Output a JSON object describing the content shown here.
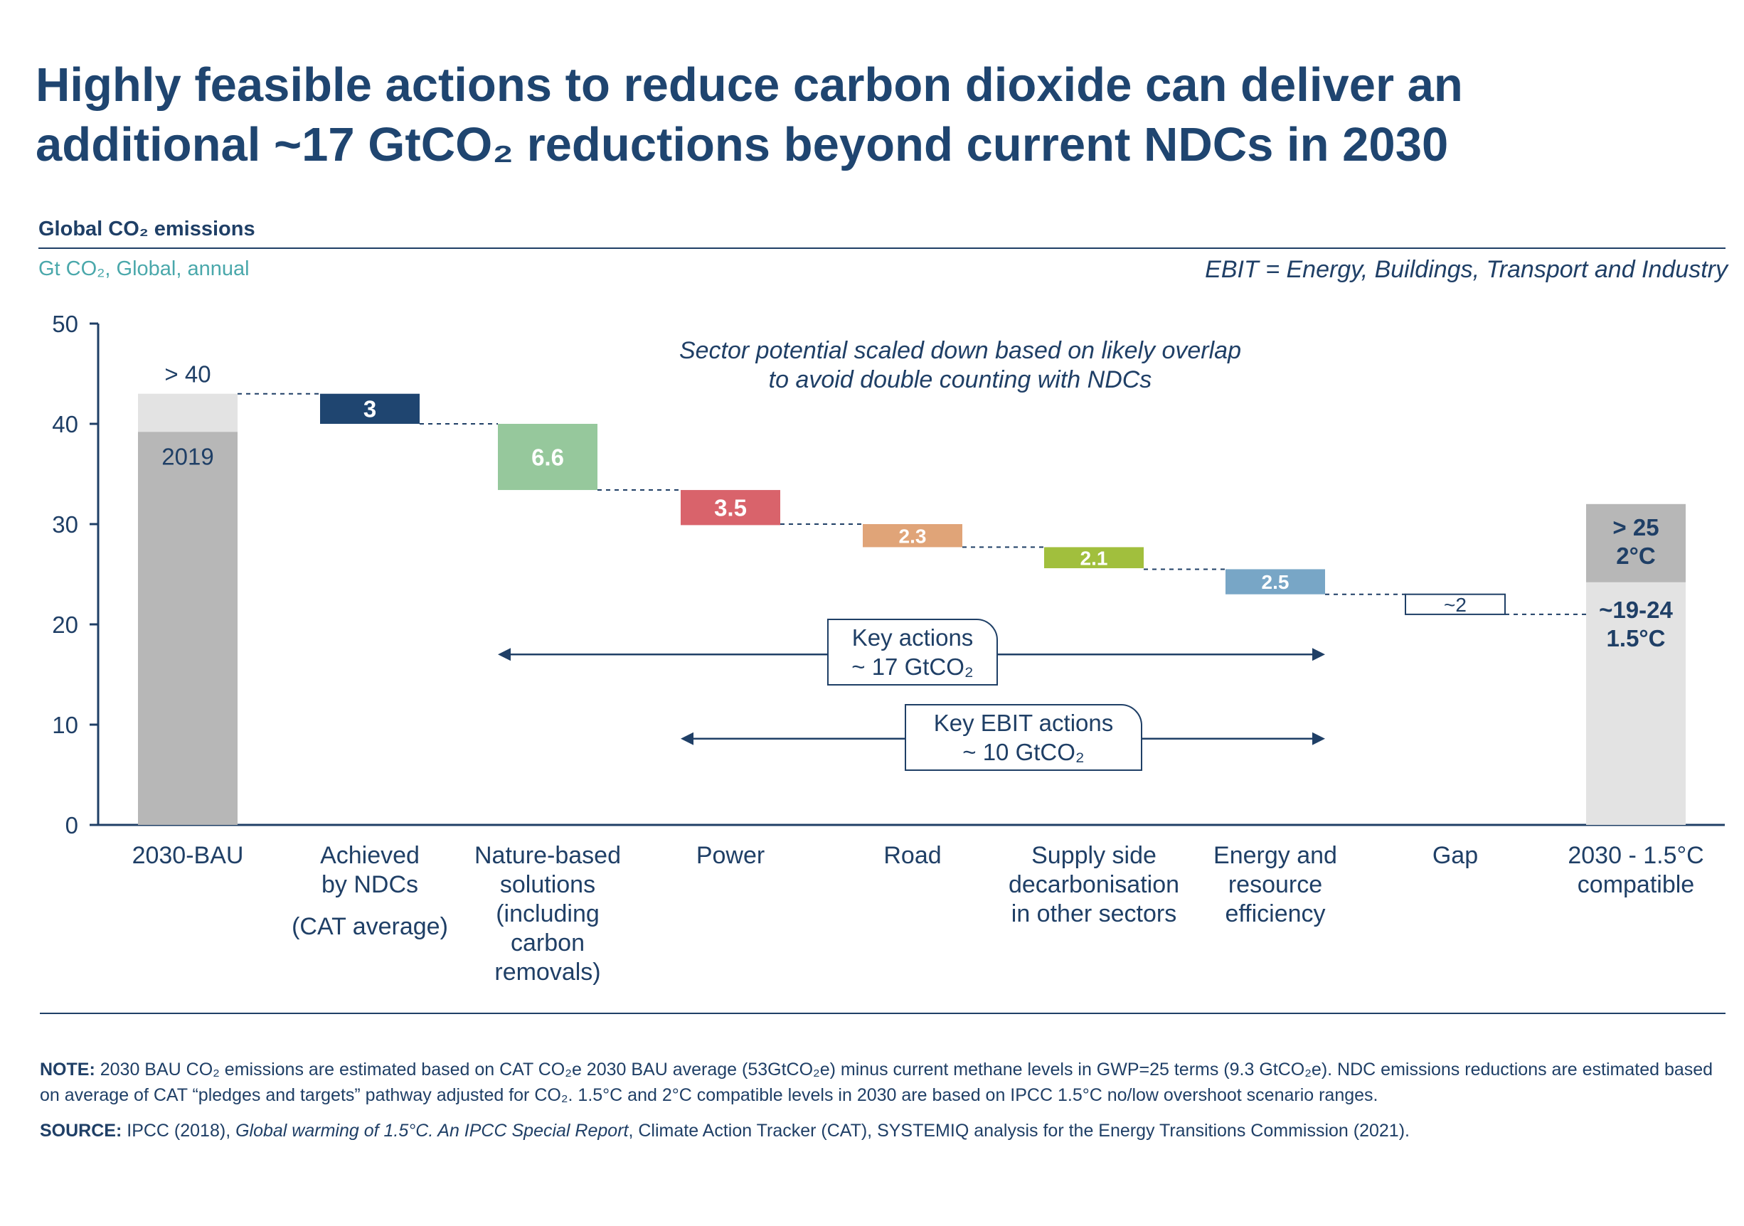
{
  "title_line1": "Highly feasible actions to reduce carbon dioxide can deliver an",
  "title_line2": "additional ~17 GtCO₂ reductions beyond current NDCs in 2030",
  "chart_subtitle": "Global CO₂ emissions",
  "unit_label": "Gt CO₂, Global, annual",
  "ebit_definition": "EBIT = Energy, Buildings, Transport and Industry",
  "overlap_note_line1": "Sector potential scaled down based on likely overlap",
  "overlap_note_line2": "to avoid double counting with NDCs",
  "key_actions_line1": "Key actions",
  "key_actions_line2": "~ 17 GtCO₂",
  "key_ebit_line1": "Key EBIT actions",
  "key_ebit_line2": "~ 10 GtCO₂",
  "note_label": "NOTE:",
  "note_text": "2030 BAU CO₂ emissions are estimated based on CAT CO₂e 2030 BAU average (53GtCO₂e) minus current methane levels in GWP=25 terms (9.3 GtCO₂e). NDC emissions reductions are estimated based on average of CAT “pledges and targets” pathway adjusted for CO₂. 1.5°C and 2°C compatible levels in 2030 are based on IPCC 1.5°C no/low overshoot scenario ranges.",
  "source_label": "SOURCE:",
  "source_text_1": "IPCC (2018), ",
  "source_text_italic": "Global warming of 1.5°C. An IPCC Special Report",
  "source_text_2": ", Climate Action Tracker (CAT), SYSTEMIQ analysis for the Energy Transitions Commission (2021).",
  "chart_data": {
    "type": "bar",
    "subtype": "waterfall",
    "ylim": [
      0,
      50
    ],
    "yticks": [
      0,
      10,
      20,
      30,
      40,
      50
    ],
    "categories": [
      {
        "label": [
          "2030-BAU"
        ]
      },
      {
        "label": [
          "Achieved",
          "by NDCs"
        ],
        "sublabel": "(CAT average)"
      },
      {
        "label": [
          "Nature-based",
          "solutions",
          "(including",
          "carbon",
          "removals)"
        ]
      },
      {
        "label": [
          "Power"
        ]
      },
      {
        "label": [
          "Road"
        ]
      },
      {
        "label": [
          "Supply side",
          "decarbonisation",
          "in other sectors"
        ]
      },
      {
        "label": [
          "Energy and",
          "resource",
          "efficiency"
        ]
      },
      {
        "label": [
          "Gap"
        ]
      },
      {
        "label": [
          "2030 - 1.5°C",
          "compatible"
        ]
      }
    ],
    "bau": {
      "value_2019": 39.2,
      "value_2030": 43,
      "label_2019": "2019",
      "label_2030": "> 40",
      "color_2019": "#b7b7b7",
      "color_2030": "#e3e3e3"
    },
    "steps": [
      {
        "value": 3,
        "label": "3",
        "top": 43,
        "color": "#1f4570",
        "label_color": "#ffffff"
      },
      {
        "value": 6.6,
        "label": "6.6",
        "top": 40,
        "color": "#96c89c",
        "label_color": "#ffffff"
      },
      {
        "value": 3.5,
        "label": "3.5",
        "top": 33.4,
        "color": "#d9636b",
        "label_color": "#ffffff"
      },
      {
        "value": 2.3,
        "label": "2.3",
        "top": 30,
        "color": "#e0a478",
        "label_color": "#ffffff"
      },
      {
        "value": 2.1,
        "label": "2.1",
        "top": 27.7,
        "color": "#a1bf3d",
        "label_color": "#ffffff"
      },
      {
        "value": 2.5,
        "label": "2.5",
        "top": 25.5,
        "color": "#78a6c6",
        "label_color": "#ffffff"
      },
      {
        "value": 2,
        "label": "~2",
        "top": 23,
        "color": "#ffffff",
        "label_color": "#1f3f66",
        "outlined": true
      }
    ],
    "target": {
      "value_15": 24.2,
      "value_2": 32,
      "label_2_line1": "> 25",
      "label_2_line2": "2°C",
      "label_15_line1": "~19-24",
      "label_15_line2": "1.5°C",
      "color_15": "#e3e3e3",
      "color_2": "#b7b7b7"
    },
    "connector_levels": [
      43,
      40,
      33.4,
      30,
      27.7,
      25.5,
      23,
      21
    ],
    "key_actions_span": {
      "from_category": 2,
      "to_category": 6,
      "y": 17
    },
    "key_ebit_span": {
      "from_category": 3,
      "to_category": 6,
      "y": 8.6
    },
    "axis_color": "#1f3f66"
  }
}
